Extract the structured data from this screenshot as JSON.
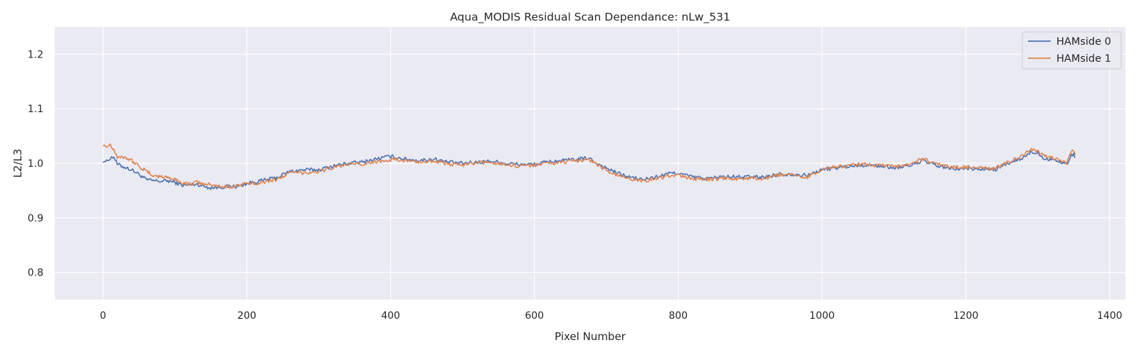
{
  "chart_data": {
    "type": "line",
    "title": "Aqua_MODIS Residual Scan Dependance: nLw_531",
    "xlabel": "Pixel Number",
    "ylabel": "L2/L3",
    "xlim": [
      -67,
      1422
    ],
    "ylim": [
      0.75,
      1.25
    ],
    "xticks": [
      0,
      200,
      400,
      600,
      800,
      1000,
      1200,
      1400
    ],
    "yticks": [
      0.8,
      0.9,
      1.0,
      1.1,
      1.2
    ],
    "xtick_labels": [
      "0",
      "200",
      "400",
      "600",
      "800",
      "1000",
      "1200",
      "1400"
    ],
    "ytick_labels": [
      "0.8",
      "0.9",
      "1.0",
      "1.1",
      "1.2"
    ],
    "grid": true,
    "legend_position": "top-right",
    "series": [
      {
        "name": "HAMside 0",
        "color": "#4c72b0",
        "points": [
          [
            0,
            1.005
          ],
          [
            5,
            1.003
          ],
          [
            10,
            1.01
          ],
          [
            15,
            1.012
          ],
          [
            20,
            0.998
          ],
          [
            30,
            0.993
          ],
          [
            40,
            0.988
          ],
          [
            50,
            0.98
          ],
          [
            60,
            0.97
          ],
          [
            70,
            0.968
          ],
          [
            80,
            0.967
          ],
          [
            90,
            0.968
          ],
          [
            100,
            0.965
          ],
          [
            110,
            0.96
          ],
          [
            120,
            0.96
          ],
          [
            130,
            0.962
          ],
          [
            140,
            0.958
          ],
          [
            150,
            0.955
          ],
          [
            160,
            0.956
          ],
          [
            170,
            0.957
          ],
          [
            180,
            0.957
          ],
          [
            190,
            0.958
          ],
          [
            200,
            0.963
          ],
          [
            220,
            0.968
          ],
          [
            240,
            0.973
          ],
          [
            260,
            0.985
          ],
          [
            280,
            0.988
          ],
          [
            300,
            0.988
          ],
          [
            320,
            0.995
          ],
          [
            340,
            1.0
          ],
          [
            360,
            1.002
          ],
          [
            380,
            1.008
          ],
          [
            400,
            1.013
          ],
          [
            420,
            1.008
          ],
          [
            440,
            1.005
          ],
          [
            460,
            1.008
          ],
          [
            480,
            1.002
          ],
          [
            500,
            1.0
          ],
          [
            520,
            1.002
          ],
          [
            540,
            1.004
          ],
          [
            560,
            1.0
          ],
          [
            580,
            0.998
          ],
          [
            600,
            0.998
          ],
          [
            620,
            1.003
          ],
          [
            640,
            1.005
          ],
          [
            660,
            1.007
          ],
          [
            675,
            1.01
          ],
          [
            690,
            0.998
          ],
          [
            710,
            0.985
          ],
          [
            730,
            0.975
          ],
          [
            750,
            0.97
          ],
          [
            770,
            0.975
          ],
          [
            790,
            0.982
          ],
          [
            800,
            0.982
          ],
          [
            820,
            0.975
          ],
          [
            840,
            0.972
          ],
          [
            860,
            0.975
          ],
          [
            880,
            0.975
          ],
          [
            900,
            0.975
          ],
          [
            920,
            0.975
          ],
          [
            940,
            0.98
          ],
          [
            960,
            0.98
          ],
          [
            980,
            0.978
          ],
          [
            1000,
            0.988
          ],
          [
            1020,
            0.992
          ],
          [
            1040,
            0.995
          ],
          [
            1060,
            0.997
          ],
          [
            1080,
            0.995
          ],
          [
            1100,
            0.992
          ],
          [
            1120,
            0.995
          ],
          [
            1140,
            1.005
          ],
          [
            1160,
            0.995
          ],
          [
            1180,
            0.99
          ],
          [
            1200,
            0.99
          ],
          [
            1220,
            0.99
          ],
          [
            1240,
            0.988
          ],
          [
            1260,
            1.0
          ],
          [
            1280,
            1.01
          ],
          [
            1290,
            1.02
          ],
          [
            1300,
            1.02
          ],
          [
            1310,
            1.008
          ],
          [
            1320,
            1.008
          ],
          [
            1330,
            1.003
          ],
          [
            1340,
            0.998
          ],
          [
            1345,
            1.01
          ],
          [
            1350,
            1.02
          ],
          [
            1352,
            1.01
          ]
        ]
      },
      {
        "name": "HAMside 1",
        "color": "#dd8452",
        "points": [
          [
            0,
            1.035
          ],
          [
            5,
            1.03
          ],
          [
            10,
            1.035
          ],
          [
            15,
            1.025
          ],
          [
            20,
            1.012
          ],
          [
            30,
            1.012
          ],
          [
            40,
            1.005
          ],
          [
            50,
            0.995
          ],
          [
            60,
            0.985
          ],
          [
            70,
            0.978
          ],
          [
            80,
            0.975
          ],
          [
            90,
            0.975
          ],
          [
            100,
            0.97
          ],
          [
            110,
            0.964
          ],
          [
            120,
            0.962
          ],
          [
            130,
            0.965
          ],
          [
            140,
            0.962
          ],
          [
            150,
            0.96
          ],
          [
            160,
            0.958
          ],
          [
            170,
            0.957
          ],
          [
            180,
            0.958
          ],
          [
            190,
            0.96
          ],
          [
            200,
            0.962
          ],
          [
            220,
            0.965
          ],
          [
            240,
            0.97
          ],
          [
            260,
            0.982
          ],
          [
            280,
            0.983
          ],
          [
            300,
            0.985
          ],
          [
            320,
            0.992
          ],
          [
            340,
            0.998
          ],
          [
            360,
            0.998
          ],
          [
            380,
            1.003
          ],
          [
            400,
            1.007
          ],
          [
            420,
            1.005
          ],
          [
            440,
            1.002
          ],
          [
            460,
            1.005
          ],
          [
            480,
            0.998
          ],
          [
            500,
            0.997
          ],
          [
            520,
            1.0
          ],
          [
            540,
            1.002
          ],
          [
            560,
            0.998
          ],
          [
            580,
            0.995
          ],
          [
            600,
            0.997
          ],
          [
            620,
            1.0
          ],
          [
            640,
            1.002
          ],
          [
            660,
            1.005
          ],
          [
            675,
            1.008
          ],
          [
            690,
            0.995
          ],
          [
            710,
            0.98
          ],
          [
            730,
            0.972
          ],
          [
            750,
            0.968
          ],
          [
            770,
            0.972
          ],
          [
            790,
            0.978
          ],
          [
            800,
            0.978
          ],
          [
            820,
            0.972
          ],
          [
            840,
            0.97
          ],
          [
            860,
            0.972
          ],
          [
            880,
            0.972
          ],
          [
            900,
            0.972
          ],
          [
            920,
            0.972
          ],
          [
            940,
            0.978
          ],
          [
            960,
            0.978
          ],
          [
            980,
            0.975
          ],
          [
            1000,
            0.99
          ],
          [
            1020,
            0.993
          ],
          [
            1040,
            0.997
          ],
          [
            1060,
            0.998
          ],
          [
            1080,
            0.996
          ],
          [
            1100,
            0.994
          ],
          [
            1120,
            0.997
          ],
          [
            1140,
            1.008
          ],
          [
            1160,
            0.998
          ],
          [
            1180,
            0.993
          ],
          [
            1200,
            0.993
          ],
          [
            1220,
            0.993
          ],
          [
            1240,
            0.99
          ],
          [
            1260,
            1.003
          ],
          [
            1280,
            1.015
          ],
          [
            1290,
            1.025
          ],
          [
            1300,
            1.022
          ],
          [
            1310,
            1.012
          ],
          [
            1320,
            1.01
          ],
          [
            1330,
            1.005
          ],
          [
            1340,
            1.0
          ],
          [
            1345,
            1.015
          ],
          [
            1350,
            1.025
          ],
          [
            1352,
            1.015
          ]
        ]
      }
    ]
  }
}
